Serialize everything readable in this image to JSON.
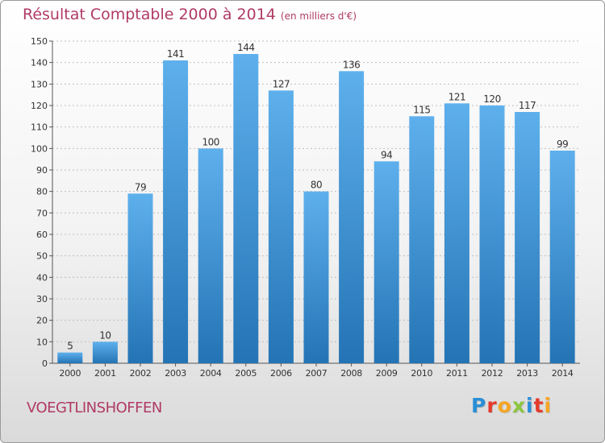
{
  "header": {
    "title": "Résultat Comptable 2000 à 2014",
    "unit": "(en milliers d'€)"
  },
  "footer": {
    "commune": "VOEGTLINSHOFFEN",
    "logo_letters": [
      {
        "char": "P",
        "color": "#2a8fd6"
      },
      {
        "char": "r",
        "color": "#e53b2c"
      },
      {
        "char": "o",
        "color": "#f5a623"
      },
      {
        "char": "x",
        "color": "#8cc63f"
      },
      {
        "char": "i",
        "color": "#2a8fd6"
      },
      {
        "char": "t",
        "color": "#e53b2c"
      },
      {
        "char": "i",
        "color": "#f5a623"
      }
    ]
  },
  "colors": {
    "bar_top": "#5eb0ec",
    "bar_bottom": "#2474b5",
    "title": "#b03a66",
    "grid": "#bfbfbf"
  },
  "chart_data": {
    "type": "bar",
    "title": "Résultat Comptable 2000 à 2014",
    "subtitle": "(en milliers d'€)",
    "categories": [
      "2000",
      "2001",
      "2002",
      "2003",
      "2004",
      "2005",
      "2006",
      "2007",
      "2008",
      "2009",
      "2010",
      "2011",
      "2012",
      "2013",
      "2014"
    ],
    "values": [
      5,
      10,
      79,
      141,
      100,
      144,
      127,
      80,
      136,
      94,
      115,
      121,
      120,
      117,
      99
    ],
    "ylim": [
      0,
      150
    ],
    "yticks": [
      0,
      10,
      20,
      30,
      40,
      50,
      60,
      70,
      80,
      90,
      100,
      110,
      120,
      130,
      140,
      150
    ],
    "grid": true,
    "data_labels": true
  }
}
